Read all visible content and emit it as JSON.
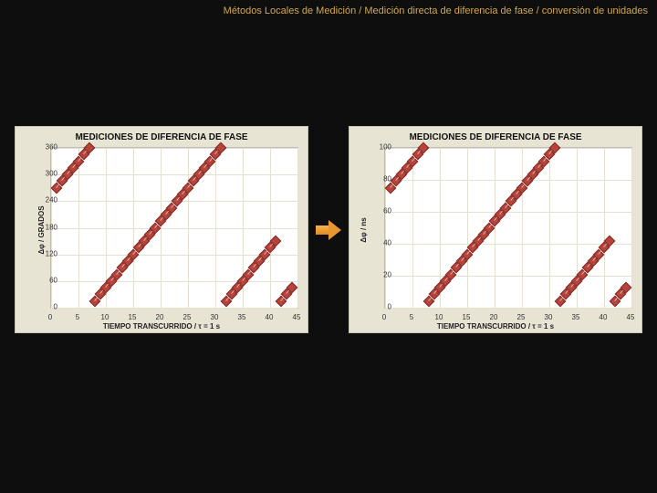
{
  "breadcrumb": "Métodos Locales de Medición / Medición directa de diferencia de fase / conversión de unidades",
  "arrow_color_top": "#f6b451",
  "arrow_color_bottom": "#e08b1f",
  "panel_bg": "#e8e4d4",
  "plot_bg": "#ffffff",
  "grid_color": "#e6e0d2",
  "line_color": "#e9a9a9",
  "marker_fill": "#b8433a",
  "marker_border": "#7a2a24",
  "chart_left": {
    "title": "MEDICIONES DE DIFERENCIA DE FASE",
    "ylabel": "Δφ / GRADOS",
    "xlabel": "TIEMPO TRANSCURRIDO / τ = 1 s",
    "xlim": [
      0,
      45
    ],
    "ylim": [
      0,
      360
    ],
    "xticks": [
      0,
      5,
      10,
      15,
      20,
      25,
      30,
      35,
      40,
      45
    ],
    "yticks": [
      0,
      60,
      120,
      180,
      240,
      300,
      360
    ],
    "segments": [
      {
        "x": [
          1,
          2,
          3,
          4,
          5,
          6,
          7
        ],
        "y": [
          270,
          285,
          300,
          315,
          330,
          345,
          360
        ]
      },
      {
        "x": [
          8,
          9,
          10,
          11,
          12,
          13,
          14,
          15,
          16,
          17,
          18,
          19,
          20,
          21,
          22,
          23,
          24,
          25,
          26,
          27,
          28,
          29,
          30,
          31
        ],
        "y": [
          15,
          30,
          45,
          60,
          75,
          90,
          105,
          120,
          135,
          150,
          165,
          180,
          195,
          210,
          225,
          240,
          255,
          270,
          285,
          300,
          315,
          330,
          345,
          360
        ]
      },
      {
        "x": [
          32,
          33,
          34,
          35,
          36,
          37,
          38,
          39,
          40,
          41
        ],
        "y": [
          15,
          30,
          45,
          60,
          75,
          90,
          105,
          120,
          135,
          150
        ]
      },
      {
        "x": [
          42,
          43,
          44
        ],
        "y": [
          15,
          30,
          45
        ]
      }
    ]
  },
  "chart_right": {
    "title": "MEDICIONES DE DIFERENCIA DE FASE",
    "ylabel": "Δφ / ns",
    "xlabel": "TIEMPO TRANSCURRIDO / τ = 1 s",
    "xlim": [
      0,
      45
    ],
    "ylim": [
      0,
      100
    ],
    "xticks": [
      0,
      5,
      10,
      15,
      20,
      25,
      30,
      35,
      40,
      45
    ],
    "yticks": [
      0,
      20,
      40,
      60,
      80,
      100
    ],
    "segments": [
      {
        "x": [
          1,
          2,
          3,
          4,
          5,
          6,
          7
        ],
        "y": [
          75,
          79.2,
          83.3,
          87.5,
          91.7,
          95.8,
          100
        ]
      },
      {
        "x": [
          8,
          9,
          10,
          11,
          12,
          13,
          14,
          15,
          16,
          17,
          18,
          19,
          20,
          21,
          22,
          23,
          24,
          25,
          26,
          27,
          28,
          29,
          30,
          31
        ],
        "y": [
          4.2,
          8.3,
          12.5,
          16.7,
          20.8,
          25,
          29.2,
          33.3,
          37.5,
          41.7,
          45.8,
          50,
          54.2,
          58.3,
          62.5,
          66.7,
          70.8,
          75,
          79.2,
          83.3,
          87.5,
          91.7,
          95.8,
          100
        ]
      },
      {
        "x": [
          32,
          33,
          34,
          35,
          36,
          37,
          38,
          39,
          40,
          41
        ],
        "y": [
          4.2,
          8.3,
          12.5,
          16.7,
          20.8,
          25,
          29.2,
          33.3,
          37.5,
          41.7
        ]
      },
      {
        "x": [
          42,
          43,
          44
        ],
        "y": [
          4.2,
          8.3,
          12.5
        ]
      }
    ]
  }
}
